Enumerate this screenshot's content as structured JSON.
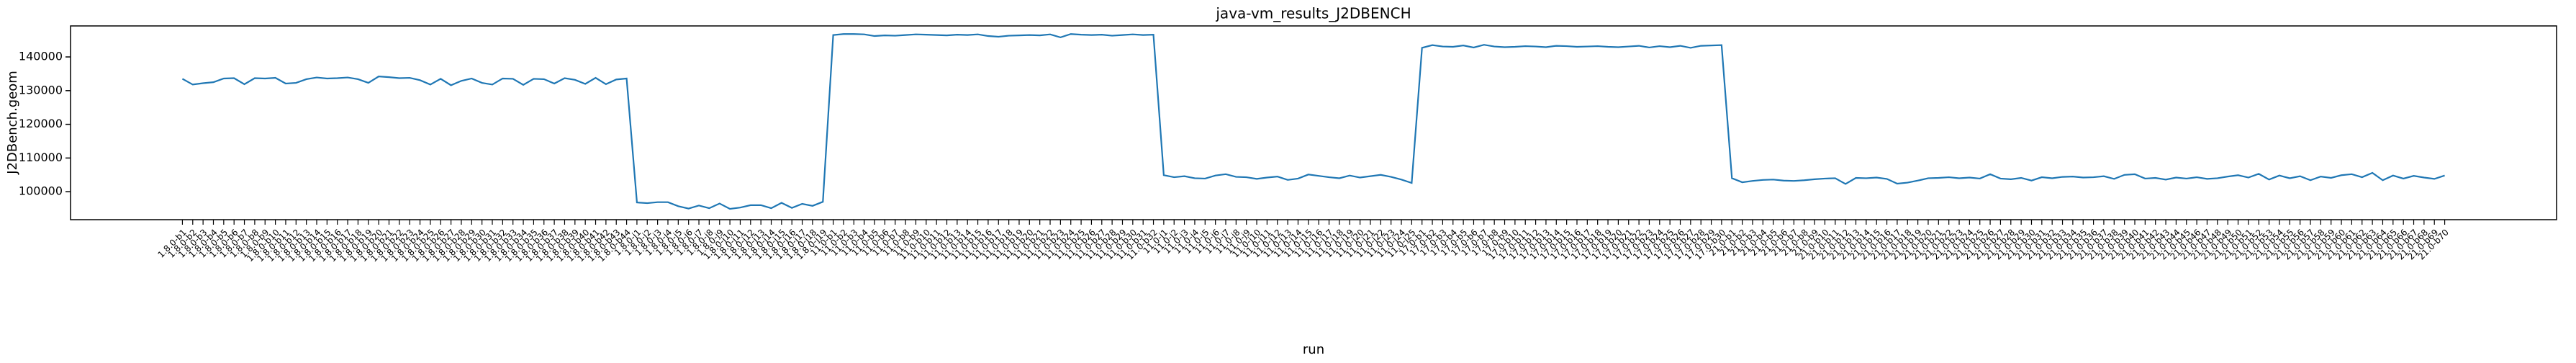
{
  "chart_data": {
    "type": "line",
    "title": "java-vm_results_J2DBENCH",
    "x_label": "run",
    "y_label": "J2DBench.geom",
    "categories": [
      "1.8.0-b1",
      "1.8.0-b2",
      "1.8.0-b3",
      "1.8.0-b4",
      "1.8.0-b5",
      "1.8.0-b6",
      "1.8.0-b7",
      "1.8.0-b8",
      "1.8.0-b9",
      "1.8.0-b10",
      "1.8.0-b11",
      "1.8.0-b12",
      "1.8.0-b13",
      "1.8.0-b14",
      "1.8.0-b15",
      "1.8.0-b16",
      "1.8.0-b17",
      "1.8.0-b18",
      "1.8.0-b19",
      "1.8.0-b20",
      "1.8.0-b21",
      "1.8.0-b22",
      "1.8.0-b23",
      "1.8.0-b24",
      "1.8.0-b25",
      "1.8.0-b26",
      "1.8.0-b27",
      "1.8.0-b28",
      "1.8.0-b29",
      "1.8.0-b30",
      "1.8.0-b31",
      "1.8.0-b32",
      "1.8.0-b33",
      "1.8.0-b34",
      "1.8.0-b35",
      "1.8.0-b36",
      "1.8.0-b37",
      "1.8.0-b38",
      "1.8.0-b39",
      "1.8.0-b40",
      "1.8.0-b41",
      "1.8.0-b42",
      "1.8.0-b43",
      "1.8.0-b44",
      "1.8.0-j1",
      "1.8.0-j2",
      "1.8.0-j3",
      "1.8.0-j4",
      "1.8.0-j5",
      "1.8.0-j6",
      "1.8.0-j7",
      "1.8.0-j8",
      "1.8.0-j9",
      "1.8.0-j10",
      "1.8.0-j11",
      "1.8.0-j12",
      "1.8.0-j13",
      "1.8.0-j14",
      "1.8.0-j15",
      "1.8.0-j16",
      "1.8.0-j17",
      "1.8.0-j18",
      "1.8.0-j19",
      "11.0-b1",
      "11.0-b2",
      "11.0-b3",
      "11.0-b4",
      "11.0-b5",
      "11.0-b6",
      "11.0-b7",
      "11.0-b8",
      "11.0-b9",
      "11.0-b10",
      "11.0-b11",
      "11.0-b12",
      "11.0-b13",
      "11.0-b14",
      "11.0-b15",
      "11.0-b16",
      "11.0-b17",
      "11.0-b18",
      "11.0-b19",
      "11.0-b20",
      "11.0-b21",
      "11.0-b22",
      "11.0-b23",
      "11.0-b24",
      "11.0-b25",
      "11.0-b26",
      "11.0-b27",
      "11.0-b28",
      "11.0-b29",
      "11.0-b30",
      "11.0-b31",
      "11.0-b32",
      "11.0-j1",
      "11.0-j2",
      "11.0-j3",
      "11.0-j4",
      "11.0-j5",
      "11.0-j6",
      "11.0-j7",
      "11.0-j8",
      "11.0-j9",
      "11.0-j10",
      "11.0-j11",
      "11.0-j12",
      "11.0-j13",
      "11.0-j14",
      "11.0-j15",
      "11.0-j16",
      "11.0-j17",
      "11.0-j18",
      "11.0-j19",
      "11.0-j20",
      "11.0-j21",
      "11.0-j22",
      "11.0-j23",
      "11.0-j24",
      "11.0-j25",
      "17.0-b1",
      "17.0-b2",
      "17.0-b3",
      "17.0-b4",
      "17.0-b5",
      "17.0-b6",
      "17.0-b7",
      "17.0-b8",
      "17.0-b9",
      "17.0-b10",
      "17.0-b11",
      "17.0-b12",
      "17.0-b13",
      "17.0-b14",
      "17.0-b15",
      "17.0-b16",
      "17.0-b17",
      "17.0-b18",
      "17.0-b19",
      "17.0-b20",
      "17.0-b21",
      "17.0-b22",
      "17.0-b23",
      "17.0-b24",
      "17.0-b25",
      "17.0-b26",
      "17.0-b27",
      "17.0-b28",
      "17.0-b29",
      "17.0-b30",
      "21.0-b1",
      "21.0-b2",
      "21.0-b3",
      "21.0-b4",
      "21.0-b5",
      "21.0-b6",
      "21.0-b7",
      "21.0-b8",
      "21.0-b9",
      "21.0-b10",
      "21.0-b11",
      "21.0-b12",
      "21.0-b13",
      "21.0-b14",
      "21.0-b15",
      "21.0-b16",
      "21.0-b17",
      "21.0-b18",
      "21.0-b19",
      "21.0-b20",
      "21.0-b21",
      "21.0-b22",
      "21.0-b23",
      "21.0-b24",
      "21.0-b25",
      "21.0-b26",
      "21.0-b27",
      "21.0-b28",
      "21.0-b29",
      "21.0-b30",
      "21.0-b31",
      "21.0-b32",
      "21.0-b33",
      "21.0-b34",
      "21.0-b35",
      "21.0-b36",
      "21.0-b37",
      "21.0-b38",
      "21.0-b39",
      "21.0-b40",
      "21.0-b41",
      "21.0-b42",
      "21.0-b43",
      "21.0-b44",
      "21.0-b45",
      "21.0-b46",
      "21.0-b47",
      "21.0-b48",
      "21.0-b49",
      "21.0-b50",
      "21.0-b51",
      "21.0-b52",
      "21.0-b53",
      "21.0-b54",
      "21.0-b55",
      "21.0-b56",
      "21.0-b57",
      "21.0-b58",
      "21.0-b59",
      "21.0-b60",
      "21.0-b61",
      "21.0-b62",
      "21.0-b63",
      "21.0-b64",
      "21.0-b65",
      "21.0-b66",
      "21.0-b67",
      "21.0-b68",
      "21.0-b69",
      "21.0-b70"
    ],
    "series": [
      {
        "name": "J2DBench.geom",
        "color": "#1f77b4",
        "values": [
          133500,
          131800,
          132200,
          132500,
          133600,
          133700,
          131900,
          133700,
          133600,
          133800,
          132100,
          132300,
          133400,
          133900,
          133600,
          133700,
          133900,
          133400,
          132300,
          134200,
          134000,
          133700,
          133800,
          133100,
          131800,
          133500,
          131600,
          132900,
          133600,
          132300,
          131800,
          133600,
          133500,
          131700,
          133500,
          133400,
          132100,
          133700,
          133200,
          132000,
          133800,
          131900,
          133300,
          133600,
          96800,
          96600,
          96900,
          96900,
          95700,
          95000,
          95900,
          95100,
          96500,
          94900,
          95300,
          96000,
          96000,
          95100,
          96700,
          95200,
          96400,
          95800,
          97000,
          146500,
          146800,
          146800,
          146700,
          146200,
          146400,
          146300,
          146500,
          146700,
          146600,
          146500,
          146400,
          146600,
          146500,
          146700,
          146200,
          146000,
          146300,
          146400,
          146500,
          146400,
          146700,
          145800,
          146800,
          146600,
          146500,
          146600,
          146300,
          146500,
          146700,
          146500,
          146600,
          104900,
          104300,
          104600,
          104000,
          103900,
          104800,
          105200,
          104400,
          104300,
          103800,
          104200,
          104500,
          103500,
          103900,
          105100,
          104700,
          104300,
          104000,
          104800,
          104200,
          104600,
          105000,
          104400,
          103600,
          102600,
          142700,
          143500,
          143100,
          143000,
          143400,
          142800,
          143600,
          143100,
          142900,
          143000,
          143200,
          143100,
          142900,
          143300,
          143200,
          143000,
          143100,
          143200,
          143000,
          142900,
          143100,
          143300,
          142800,
          143200,
          142900,
          143300,
          142700,
          143300,
          143400,
          143500,
          104000,
          102800,
          103200,
          103500,
          103600,
          103300,
          103200,
          103400,
          103700,
          103900,
          104000,
          102300,
          104100,
          104000,
          104200,
          103800,
          102400,
          102700,
          103300,
          104000,
          104100,
          104300,
          104000,
          104200,
          103900,
          105200,
          103900,
          103700,
          104100,
          103300,
          104300,
          104000,
          104400,
          104500,
          104200,
          104300,
          104600,
          103800,
          105000,
          105200,
          103900,
          104100,
          103600,
          104200,
          103900,
          104300,
          103800,
          104000,
          104500,
          104900,
          104200,
          105300,
          103600,
          104800,
          104000,
          104600,
          103400,
          104500,
          104100,
          104900,
          105200,
          104300,
          105600,
          103400,
          104800,
          103900,
          104700,
          104200,
          103800,
          104800
        ]
      }
    ],
    "ylim": [
      91700,
      149200
    ],
    "yticks": [
      100000,
      110000,
      120000,
      130000,
      140000
    ],
    "grid": false
  }
}
